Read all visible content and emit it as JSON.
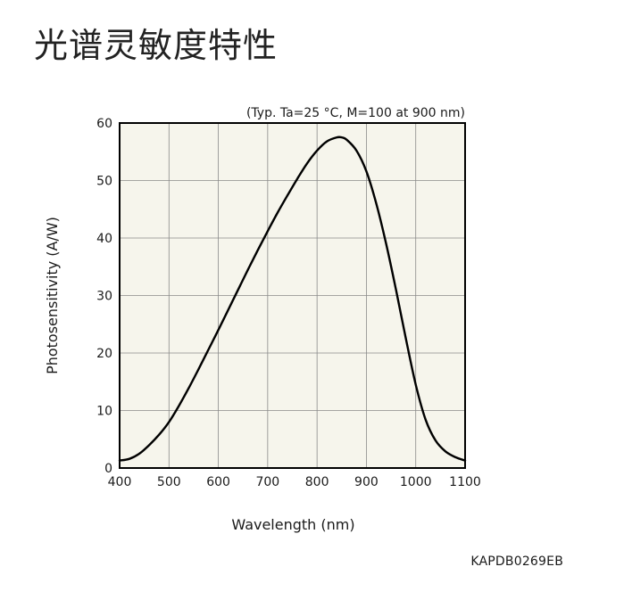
{
  "page": {
    "title": "光谱灵敏度特性",
    "figure_code": "KAPDB0269EB"
  },
  "chart_data": {
    "type": "line",
    "title": "",
    "condition": "(Typ. Ta=25 °C, M=100 at 900 nm)",
    "xlabel": "Wavelength (nm)",
    "ylabel": "Photosensitivity (A/W)",
    "xlim": [
      400,
      1100
    ],
    "ylim": [
      0,
      60
    ],
    "xticks": [
      400,
      500,
      600,
      700,
      800,
      900,
      1000,
      1100
    ],
    "yticks": [
      0,
      10,
      20,
      30,
      40,
      50,
      60
    ],
    "grid": true,
    "legend": "none",
    "colors": {
      "plot_background": "#f6f5ec",
      "grid": "#8a8a8a",
      "axes": "#000000",
      "series": "#000000"
    },
    "series": [
      {
        "name": "",
        "x": [
          400,
          420,
          440,
          460,
          480,
          500,
          520,
          540,
          560,
          580,
          600,
          620,
          640,
          660,
          680,
          700,
          720,
          740,
          760,
          780,
          800,
          820,
          840,
          850,
          860,
          880,
          900,
          920,
          940,
          960,
          980,
          1000,
          1020,
          1040,
          1060,
          1080,
          1100
        ],
        "y": [
          1.3,
          1.6,
          2.5,
          4.0,
          5.8,
          8.0,
          10.8,
          13.9,
          17.2,
          20.6,
          24.0,
          27.5,
          31.0,
          34.5,
          37.9,
          41.2,
          44.4,
          47.4,
          50.3,
          53.0,
          55.2,
          56.8,
          57.5,
          57.5,
          57.1,
          55.2,
          51.6,
          46.0,
          39.0,
          31.0,
          22.5,
          14.5,
          8.4,
          4.8,
          2.9,
          1.9,
          1.3
        ]
      }
    ]
  }
}
